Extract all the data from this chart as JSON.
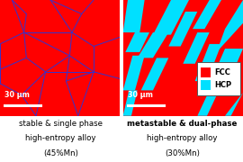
{
  "fig_width": 2.7,
  "fig_height": 1.8,
  "dpi": 100,
  "bg_color": "#FFFFFF",
  "panel_bg": "#FF0000",
  "grain_color": "#3333CC",
  "hcp_color": "#00E0FF",
  "left_grains": [
    [
      [
        0.0,
        0.62
      ],
      [
        0.2,
        0.72
      ]
    ],
    [
      [
        0.2,
        0.72
      ],
      [
        0.1,
        1.0
      ]
    ],
    [
      [
        0.0,
        0.62
      ],
      [
        0.0,
        0.4
      ]
    ],
    [
      [
        0.0,
        0.4
      ],
      [
        0.22,
        0.5
      ]
    ],
    [
      [
        0.22,
        0.5
      ],
      [
        0.2,
        0.72
      ]
    ],
    [
      [
        0.22,
        0.5
      ],
      [
        0.38,
        0.38
      ]
    ],
    [
      [
        0.38,
        0.38
      ],
      [
        0.3,
        0.0
      ]
    ],
    [
      [
        0.38,
        0.38
      ],
      [
        0.58,
        0.52
      ]
    ],
    [
      [
        0.58,
        0.52
      ],
      [
        0.2,
        0.72
      ]
    ],
    [
      [
        0.58,
        0.52
      ],
      [
        0.6,
        0.72
      ]
    ],
    [
      [
        0.6,
        0.72
      ],
      [
        0.2,
        0.72
      ]
    ],
    [
      [
        0.6,
        0.72
      ],
      [
        0.42,
        1.0
      ]
    ],
    [
      [
        0.6,
        0.72
      ],
      [
        0.78,
        0.6
      ]
    ],
    [
      [
        0.78,
        0.6
      ],
      [
        1.0,
        0.68
      ]
    ],
    [
      [
        0.78,
        0.6
      ],
      [
        0.78,
        0.38
      ]
    ],
    [
      [
        0.78,
        0.38
      ],
      [
        0.58,
        0.52
      ]
    ],
    [
      [
        0.78,
        0.38
      ],
      [
        1.0,
        0.32
      ]
    ],
    [
      [
        0.78,
        0.38
      ],
      [
        0.65,
        0.0
      ]
    ],
    [
      [
        0.38,
        0.38
      ],
      [
        0.78,
        0.38
      ]
    ],
    [
      [
        0.0,
        0.4
      ],
      [
        0.0,
        0.28
      ]
    ],
    [
      [
        0.0,
        0.28
      ],
      [
        0.18,
        0.18
      ]
    ],
    [
      [
        0.18,
        0.18
      ],
      [
        0.38,
        0.38
      ]
    ],
    [
      [
        0.18,
        0.18
      ],
      [
        0.3,
        0.0
      ]
    ],
    [
      [
        0.6,
        0.72
      ],
      [
        0.68,
        0.88
      ]
    ],
    [
      [
        0.68,
        0.88
      ],
      [
        0.42,
        1.0
      ]
    ],
    [
      [
        0.68,
        0.88
      ],
      [
        0.78,
        1.0
      ]
    ],
    [
      [
        0.58,
        0.52
      ],
      [
        0.55,
        0.3
      ]
    ],
    [
      [
        0.55,
        0.3
      ],
      [
        0.78,
        0.38
      ]
    ],
    [
      [
        0.55,
        0.3
      ],
      [
        0.65,
        0.0
      ]
    ],
    [
      [
        0.2,
        0.72
      ],
      [
        0.22,
        0.88
      ]
    ],
    [
      [
        0.22,
        0.88
      ],
      [
        0.1,
        1.0
      ]
    ]
  ],
  "hcp_patches": [
    {
      "x": [
        0.0,
        0.04,
        0.18,
        0.14
      ],
      "y": [
        0.72,
        1.0,
        1.0,
        0.72
      ]
    },
    {
      "x": [
        0.02,
        0.1,
        0.22,
        0.14
      ],
      "y": [
        0.55,
        0.72,
        0.72,
        0.55
      ]
    },
    {
      "x": [
        0.25,
        0.4,
        0.55,
        0.4
      ],
      "y": [
        0.7,
        1.0,
        1.0,
        0.7
      ]
    },
    {
      "x": [
        0.12,
        0.25,
        0.38,
        0.25
      ],
      "y": [
        0.5,
        0.72,
        0.72,
        0.5
      ]
    },
    {
      "x": [
        0.38,
        0.52,
        0.62,
        0.48
      ],
      "y": [
        0.6,
        0.9,
        0.9,
        0.6
      ]
    },
    {
      "x": [
        0.5,
        0.62,
        0.72,
        0.6
      ],
      "y": [
        0.45,
        0.72,
        0.72,
        0.45
      ]
    },
    {
      "x": [
        0.6,
        0.72,
        0.82,
        0.7
      ],
      "y": [
        0.3,
        0.62,
        0.62,
        0.3
      ]
    },
    {
      "x": [
        0.7,
        0.85,
        1.0,
        0.85
      ],
      "y": [
        0.22,
        0.58,
        0.58,
        0.22
      ]
    },
    {
      "x": [
        0.78,
        1.0,
        1.0,
        0.85
      ],
      "y": [
        0.55,
        0.8,
        1.0,
        0.75
      ]
    },
    {
      "x": [
        0.58,
        0.72,
        0.82,
        0.68
      ],
      "y": [
        0.75,
        1.0,
        1.0,
        0.75
      ]
    },
    {
      "x": [
        0.0,
        0.08,
        0.18,
        0.1
      ],
      "y": [
        0.22,
        0.52,
        0.52,
        0.22
      ]
    },
    {
      "x": [
        0.0,
        0.05,
        0.12,
        0.07
      ],
      "y": [
        0.0,
        0.22,
        0.22,
        0.0
      ]
    },
    {
      "x": [
        0.15,
        0.28,
        0.38,
        0.25
      ],
      "y": [
        0.22,
        0.5,
        0.5,
        0.22
      ]
    },
    {
      "x": [
        0.62,
        0.72,
        0.8,
        0.7
      ],
      "y": [
        0.0,
        0.22,
        0.22,
        0.0
      ]
    },
    {
      "x": [
        0.85,
        1.0,
        1.0,
        0.9
      ],
      "y": [
        0.0,
        0.2,
        0.2,
        0.0
      ]
    }
  ],
  "scalebar_label": "30 μm",
  "left_caption": [
    "stable & single phase",
    "high-entropy alloy",
    "(45%Mn)"
  ],
  "right_caption": [
    "metastable & dual-phase",
    "high-entropy alloy",
    "(30%Mn)"
  ],
  "legend_labels": [
    "FCC",
    "HCP"
  ],
  "legend_fcc": "#FF0000",
  "legend_hcp": "#00E0FF",
  "caption_fontsize": 6.2,
  "scalebar_fontsize": 5.8
}
